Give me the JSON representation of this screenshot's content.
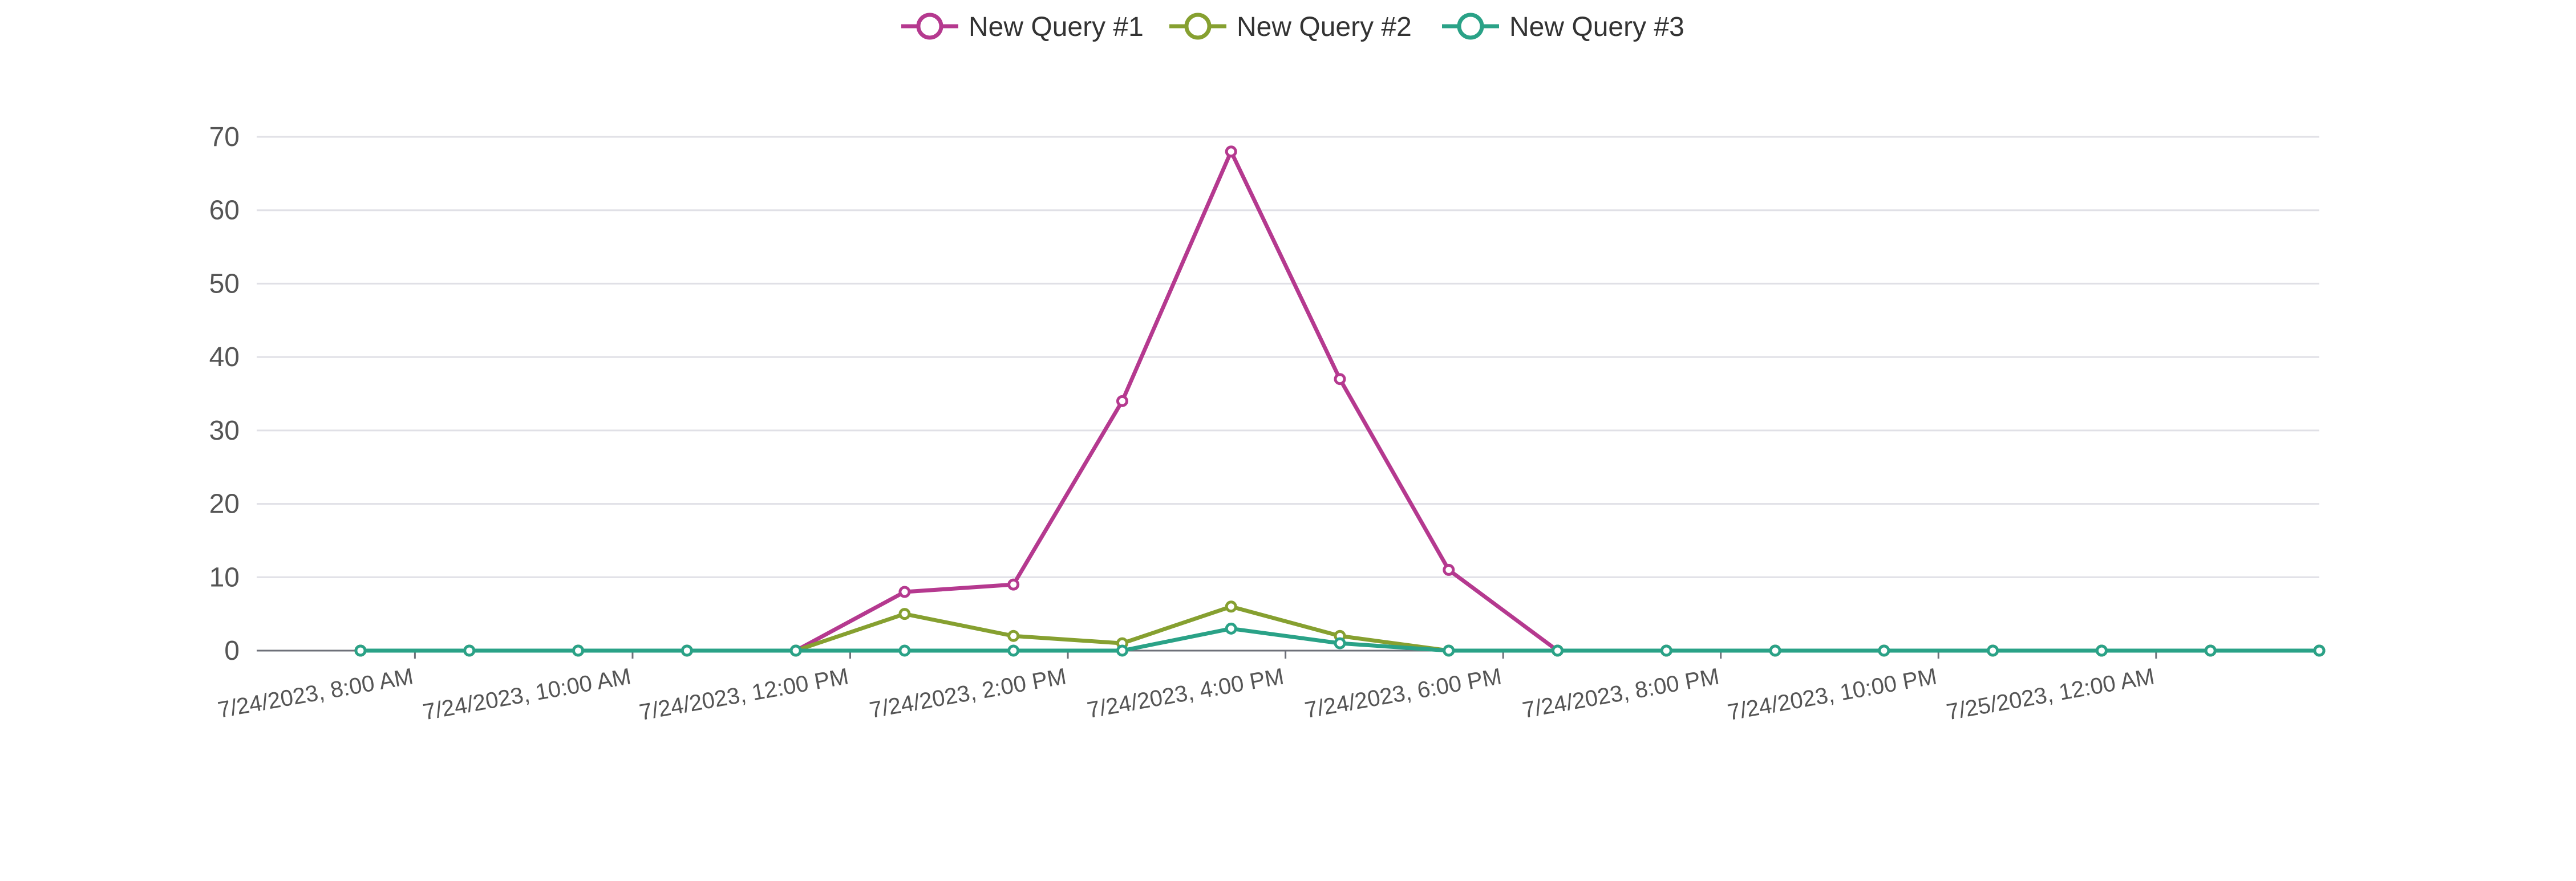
{
  "chart_data": {
    "type": "line",
    "title": "",
    "xlabel": "",
    "ylabel": "",
    "legend_position": "top-center",
    "grid": true,
    "ylim": [
      0,
      70
    ],
    "yticks": [
      0,
      10,
      20,
      30,
      40,
      50,
      60,
      70
    ],
    "x": [
      "7/24/2023, 8:00 AM",
      "7/24/2023, 9:00 AM",
      "7/24/2023, 10:00 AM",
      "7/24/2023, 11:00 AM",
      "7/24/2023, 12:00 PM",
      "7/24/2023, 1:00 PM",
      "7/24/2023, 2:00 PM",
      "7/24/2023, 3:00 PM",
      "7/24/2023, 4:00 PM",
      "7/24/2023, 5:00 PM",
      "7/24/2023, 6:00 PM",
      "7/24/2023, 7:00 PM",
      "7/24/2023, 8:00 PM",
      "7/24/2023, 9:00 PM",
      "7/24/2023, 10:00 PM",
      "7/24/2023, 11:00 PM",
      "7/25/2023, 12:00 AM",
      "7/25/2023, 1:00 AM",
      "7/25/2023, 2:00 AM"
    ],
    "x_tick_labels": [
      "7/24/2023, 8:00 AM",
      "7/24/2023, 10:00 AM",
      "7/24/2023, 12:00 PM",
      "7/24/2023, 2:00 PM",
      "7/24/2023, 4:00 PM",
      "7/24/2023, 6:00 PM",
      "7/24/2023, 8:00 PM",
      "7/24/2023, 10:00 PM",
      "7/25/2023, 12:00 AM"
    ],
    "series": [
      {
        "name": "New Query #1",
        "color": "#b5398f",
        "values": [
          0,
          0,
          0,
          0,
          0,
          8,
          9,
          34,
          68,
          37,
          11,
          0,
          0,
          0,
          0,
          0,
          0,
          0,
          0
        ]
      },
      {
        "name": "New Query #2",
        "color": "#86a030",
        "values": [
          0,
          0,
          0,
          0,
          0,
          5,
          2,
          1,
          6,
          2,
          0,
          0,
          0,
          0,
          0,
          0,
          0,
          0,
          0
        ]
      },
      {
        "name": "New Query #3",
        "color": "#2aa287",
        "values": [
          0,
          0,
          0,
          0,
          0,
          0,
          0,
          0,
          3,
          1,
          0,
          0,
          0,
          0,
          0,
          0,
          0,
          0,
          0
        ]
      }
    ]
  }
}
